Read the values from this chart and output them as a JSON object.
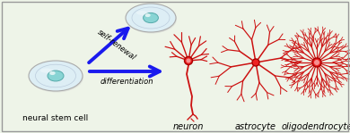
{
  "bg_color": "#eef4e8",
  "border_color": "#999999",
  "arrow_color": "#1a1aee",
  "cell_fill": "#ddeef5",
  "cell_edge": "#aaaaaa",
  "cell_nucleus_fill": "#88d4d4",
  "cell_nucleus_edge": "#55aaaa",
  "red_color": "#cc1111",
  "dark_red": "#880000",
  "soma_fill": "#ee2222",
  "soma_edge": "#aa0000",
  "title_label": "neural stem cell",
  "label_neuron": "neuron",
  "label_astrocyte": "astrocyte",
  "label_oligodendrocyte": "oligodendrocyte",
  "label_self_renewal": "self-renewal",
  "label_differentiation": "differentiation",
  "figsize": [
    3.9,
    1.49
  ],
  "dpi": 100
}
